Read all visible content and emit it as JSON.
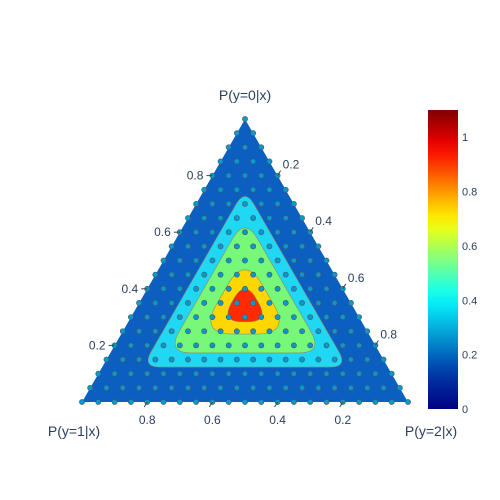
{
  "chart_data": {
    "type": "ternary-contour",
    "axes": {
      "a": {
        "title": "P(y=0|x)",
        "ticks": [
          0.2,
          0.4,
          0.6,
          0.8
        ],
        "tick_labels": [
          "0.2",
          "0.4",
          "0.6",
          "0.8"
        ]
      },
      "b": {
        "title": "P(y=1|x)",
        "ticks": [
          0.2,
          0.4,
          0.6,
          0.8
        ],
        "tick_labels": [
          "0.2",
          "0.4",
          "0.6",
          "0.8"
        ]
      },
      "c": {
        "title": "P(y=2|x)",
        "ticks": [
          0.2,
          0.4,
          0.6,
          0.8
        ],
        "tick_labels": [
          "0.2",
          "0.4",
          "0.6",
          "0.8"
        ]
      }
    },
    "contour_levels": [
      {
        "min_value": 0.0,
        "value": 0.27,
        "color": "#0a5fc0"
      },
      {
        "min_value": 0.37,
        "value": 0.47,
        "color": "#20d8f4"
      },
      {
        "min_value": 0.52,
        "value": 0.6,
        "color": "#78f878"
      },
      {
        "min_value": 0.72,
        "value": 0.72,
        "color": "#ffd700"
      },
      {
        "min_value": 0.85,
        "value": 0.86,
        "color": "#ff2a00"
      }
    ],
    "grid_step": 0.05,
    "colorbar": {
      "colorscale": "Jet",
      "range": [
        0,
        1.1
      ],
      "ticks": [
        0,
        0.2,
        0.4,
        0.6,
        0.8,
        1
      ],
      "tick_labels": [
        "0",
        "0.2",
        "0.4",
        "0.6",
        "0.8",
        "1"
      ]
    },
    "grid": false,
    "legend": "none"
  }
}
